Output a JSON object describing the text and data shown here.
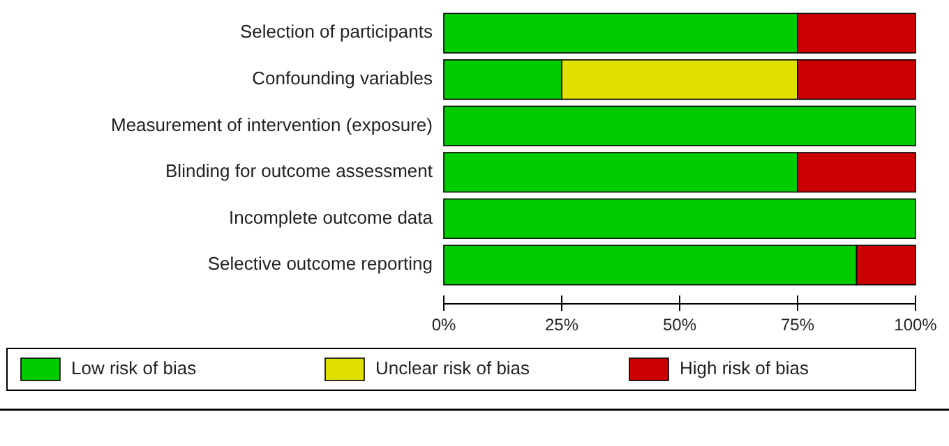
{
  "chart_data": {
    "type": "bar",
    "orientation": "horizontal",
    "stacked": true,
    "categories": [
      "Selection of participants",
      "Confounding variables",
      "Measurement of intervention (exposure)",
      "Blinding for outcome assessment",
      "Incomplete outcome data",
      "Selective outcome reporting"
    ],
    "series": [
      {
        "name": "Low risk of bias",
        "color": "#00cc00",
        "values": [
          75,
          25,
          100,
          75,
          100,
          87.5
        ]
      },
      {
        "name": "Unclear risk of bias",
        "color": "#e0e000",
        "values": [
          0,
          50,
          0,
          0,
          0,
          0
        ]
      },
      {
        "name": "High risk of bias",
        "color": "#cc0000",
        "values": [
          25,
          25,
          0,
          25,
          0,
          12.5
        ]
      }
    ],
    "xlim": [
      0,
      100
    ],
    "xticks": [
      {
        "value": 0,
        "label": "0%"
      },
      {
        "value": 25,
        "label": "25%"
      },
      {
        "value": 50,
        "label": "50%"
      },
      {
        "value": 75,
        "label": "75%"
      },
      {
        "value": 100,
        "label": "100%"
      }
    ],
    "grid": false,
    "legend": "bottom"
  }
}
